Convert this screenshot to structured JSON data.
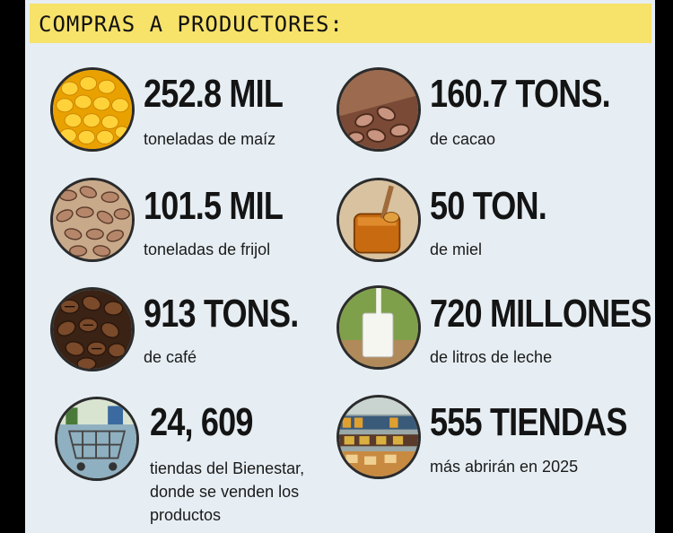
{
  "header": {
    "title": "COMPRAS A PRODUCTORES:"
  },
  "items": [
    {
      "value": "252.8 MIL",
      "desc": [
        "toneladas de maíz"
      ],
      "icon": "corn-icon"
    },
    {
      "value": "160.7 TONS.",
      "desc": [
        "de cacao"
      ],
      "icon": "cacao-icon"
    },
    {
      "value": "101.5 MIL",
      "desc": [
        "toneladas de frijol"
      ],
      "icon": "beans-icon"
    },
    {
      "value": "50 TON.",
      "desc": [
        "de miel"
      ],
      "icon": "honey-icon"
    },
    {
      "value": "913 TONS.",
      "desc": [
        "de café"
      ],
      "icon": "coffee-icon"
    },
    {
      "value": "720 MILLONES",
      "desc": [
        "de litros de leche"
      ],
      "icon": "milk-icon"
    },
    {
      "value": "24, 609",
      "desc": [
        "tiendas del Bienestar,",
        "donde se venden los",
        "productos"
      ],
      "icon": "shopping-cart-icon"
    },
    {
      "value": "555 TIENDAS",
      "desc": [
        "más abrirán en 2025"
      ],
      "icon": "store-shelves-icon"
    }
  ]
}
